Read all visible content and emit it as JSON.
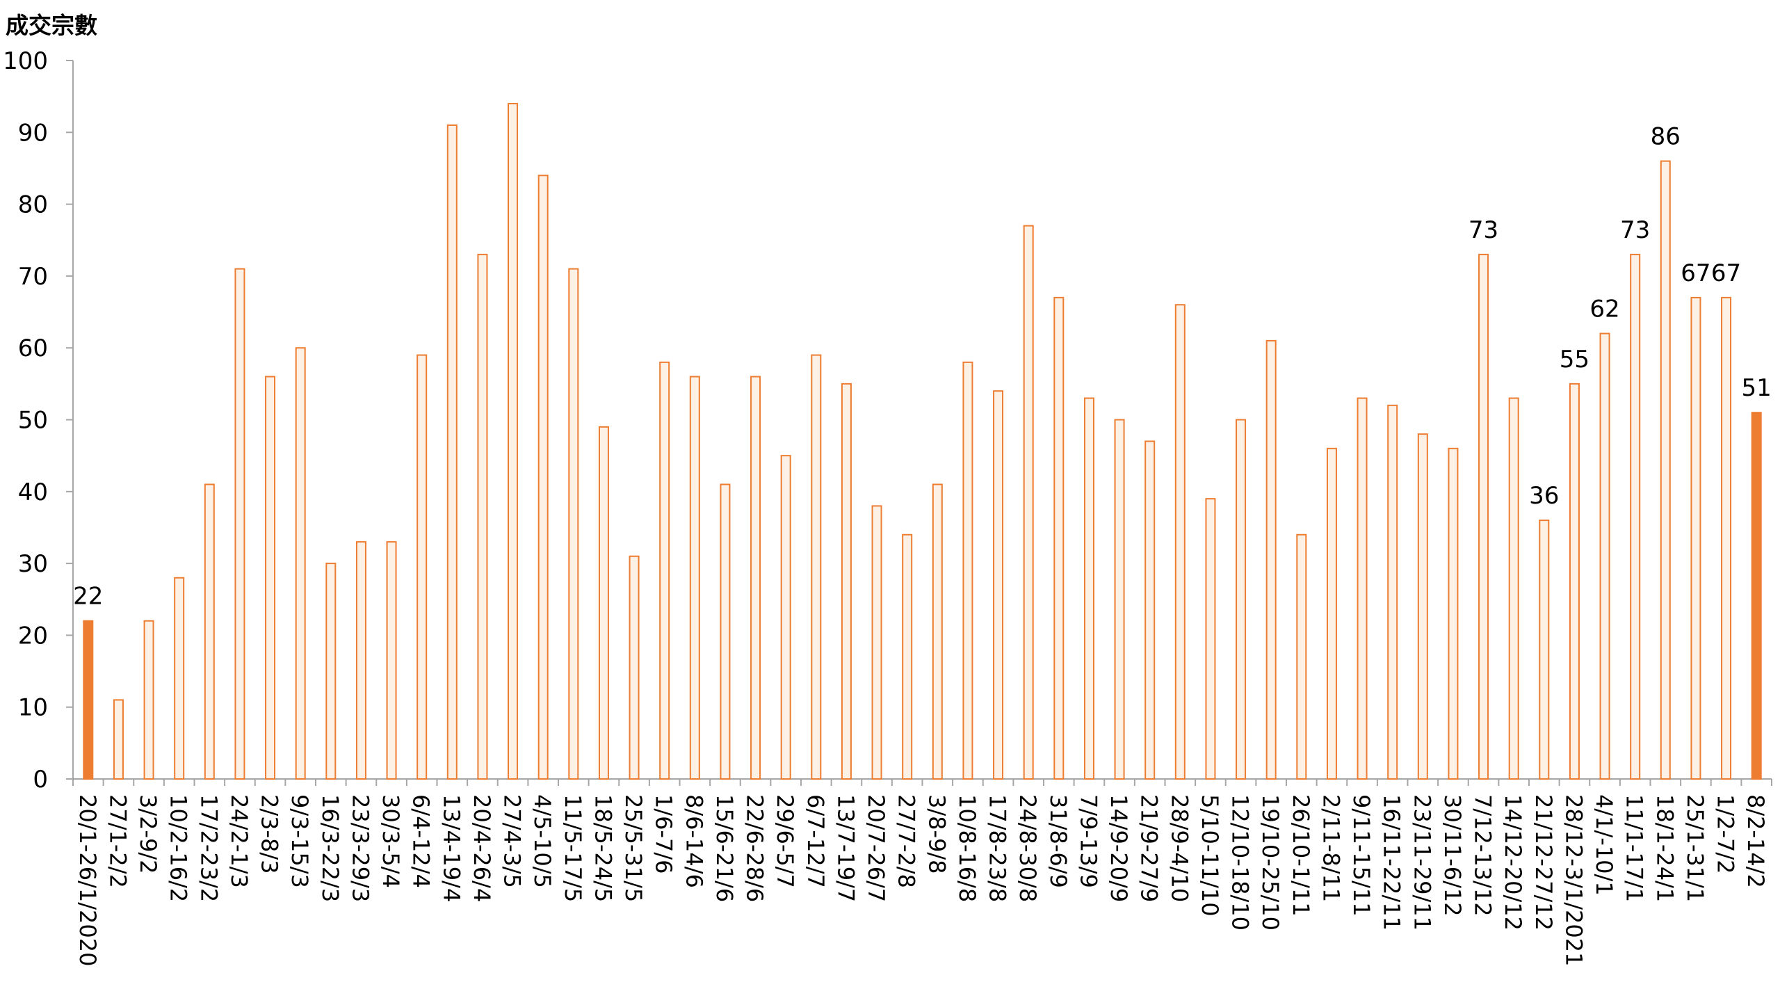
{
  "chart_data": {
    "type": "bar",
    "ylabel": "成交宗數",
    "xlabel": "",
    "title": "",
    "ylim": [
      0,
      100
    ],
    "yticks": [
      0,
      10,
      20,
      30,
      40,
      50,
      60,
      70,
      80,
      90,
      100
    ],
    "grid": false,
    "categories": [
      "20/1-26/1/2020",
      "27/1-2/2",
      "3/2-9/2",
      "10/2-16/2",
      "17/2-23/2",
      "24/2-1/3",
      "2/3-8/3",
      "9/3-15/3",
      "16/3-22/3",
      "23/3-29/3",
      "30/3-5/4",
      "6/4-12/4",
      "13/4-19/4",
      "20/4-26/4",
      "27/4-3/5",
      "4/5-10/5",
      "11/5-17/5",
      "18/5-24/5",
      "25/5-31/5",
      "1/6-7/6",
      "8/6-14/6",
      "15/6-21/6",
      "22/6-28/6",
      "29/6-5/7",
      "6/7-12/7",
      "13/7-19/7",
      "20/7-26/7",
      "27/7-2/8",
      "3/8-9/8",
      "10/8-16/8",
      "17/8-23/8",
      "24/8-30/8",
      "31/8-6/9",
      "7/9-13/9",
      "14/9-20/9",
      "21/9-27/9",
      "28/9-4/10",
      "5/10-11/10",
      "12/10-18/10",
      "19/10-25/10",
      "26/10-1/11",
      "2/11-8/11",
      "9/11-15/11",
      "16/11-22/11",
      "23/11-29/11",
      "30/11-6/12",
      "7/12-13/12",
      "14/12-20/12",
      "21/12-27/12",
      "28/12-3/1/2021",
      "4/1/-10/1",
      "11/1-17/1",
      "18/1-24/1",
      "25/1-31/1",
      "1/2-7/2",
      "8/2-14/2"
    ],
    "values": [
      22,
      11,
      22,
      28,
      41,
      71,
      56,
      60,
      30,
      33,
      33,
      59,
      91,
      73,
      94,
      84,
      71,
      49,
      31,
      58,
      56,
      41,
      56,
      45,
      59,
      55,
      38,
      34,
      41,
      58,
      54,
      77,
      67,
      53,
      50,
      47,
      66,
      39,
      50,
      61,
      34,
      46,
      53,
      52,
      48,
      46,
      73,
      53,
      36,
      55,
      62,
      73,
      86,
      67,
      67,
      51
    ],
    "highlighted_indices": [
      0,
      55
    ],
    "data_labels": [
      {
        "index": 0,
        "text": "22"
      },
      {
        "index": 46,
        "text": "73"
      },
      {
        "index": 48,
        "text": "36"
      },
      {
        "index": 49,
        "text": "55"
      },
      {
        "index": 50,
        "text": "62"
      },
      {
        "index": 51,
        "text": "73"
      },
      {
        "index": 52,
        "text": "86"
      },
      {
        "index": 53,
        "text": "67"
      },
      {
        "index": 54,
        "text": "67"
      },
      {
        "index": 55,
        "text": "51"
      }
    ],
    "colors": {
      "bar_outline": "#ED7D31",
      "bar_fill": "#FDF1E6",
      "highlight_fill": "#ED7D31",
      "axis": "#A6A6A6"
    }
  }
}
